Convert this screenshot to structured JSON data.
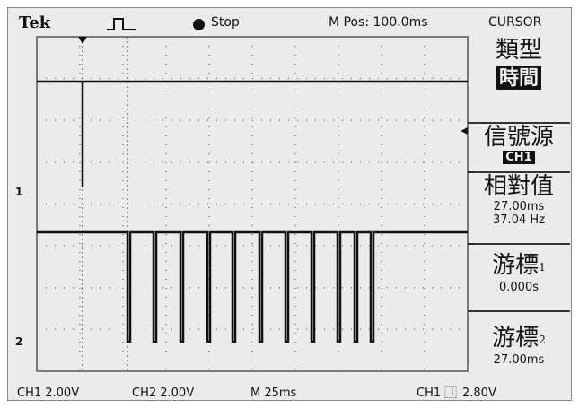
{
  "header": {
    "brand": "Tek",
    "status": "Stop",
    "position": "M Pos: 100.0ms",
    "menu": "CURSOR"
  },
  "menu": [
    {
      "label": "類型",
      "value": "時間"
    },
    {
      "label": "信號源",
      "value": "CH1"
    },
    {
      "label": "相對值",
      "values": [
        "27.00ms",
        "37.04 Hz"
      ]
    },
    {
      "label": "游標",
      "index": "1",
      "value": "0.000s"
    },
    {
      "label": "游標",
      "index": "2",
      "value": "27.00ms"
    }
  ],
  "markers": [
    "1",
    "2"
  ],
  "footer": {
    "ch1": "CH1 2.00V",
    "ch2": "CH2 2.00V",
    "time": "M 25ms",
    "trigger_source": "CH1",
    "trigger_level": "2.80V"
  }
}
